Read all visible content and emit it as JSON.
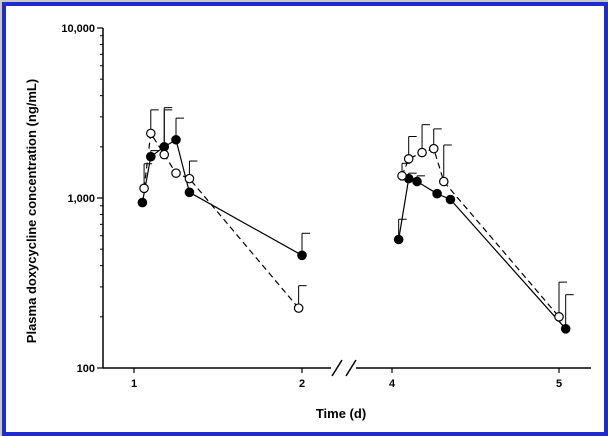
{
  "chart_data": {
    "type": "scatter",
    "title": "",
    "xlabel": "Time (d)",
    "ylabel": "Plasma doxycycline concentration (ng/mL)",
    "y_scale": "log",
    "ylim": [
      100,
      10000
    ],
    "y_ticks": [
      "100",
      "1,000",
      "10,000"
    ],
    "x_ticks": [
      "1",
      "2",
      "4",
      "5"
    ],
    "x_axis_break": "between 2 and 4",
    "grid": false,
    "series": [
      {
        "marker": "filled-circle",
        "line": "solid",
        "segments": [
          [
            {
              "x": 1.05,
              "y": 940,
              "err": 0
            },
            {
              "x": 1.1,
              "y": 1750,
              "err": 150
            },
            {
              "x": 1.18,
              "y": 2000,
              "err": 1300
            },
            {
              "x": 1.25,
              "y": 2200,
              "err": 750
            },
            {
              "x": 1.33,
              "y": 1080,
              "err": 0
            },
            {
              "x": 2.0,
              "y": 460,
              "err": 160
            }
          ],
          [
            {
              "x": 4.04,
              "y": 570,
              "err": 180
            },
            {
              "x": 4.1,
              "y": 1300,
              "err": 100
            },
            {
              "x": 4.15,
              "y": 1250,
              "err": 100
            },
            {
              "x": 4.27,
              "y": 1060,
              "err": 0
            },
            {
              "x": 4.35,
              "y": 980,
              "err": 0
            },
            {
              "x": 5.04,
              "y": 170,
              "err": 100
            }
          ]
        ]
      },
      {
        "marker": "open-circle",
        "line": "dashed",
        "segments": [
          [
            {
              "x": 1.06,
              "y": 1140,
              "err": 450
            },
            {
              "x": 1.1,
              "y": 2400,
              "err": 900
            },
            {
              "x": 1.18,
              "y": 1800,
              "err": 1600
            },
            {
              "x": 1.25,
              "y": 1400,
              "err": 0
            },
            {
              "x": 1.33,
              "y": 1300,
              "err": 350
            },
            {
              "x": 1.98,
              "y": 225,
              "err": 80
            }
          ],
          [
            {
              "x": 4.06,
              "y": 1350,
              "err": 250
            },
            {
              "x": 4.1,
              "y": 1700,
              "err": 600
            },
            {
              "x": 4.18,
              "y": 1850,
              "err": 850
            },
            {
              "x": 4.25,
              "y": 1950,
              "err": 600
            },
            {
              "x": 4.31,
              "y": 1250,
              "err": 800
            },
            {
              "x": 5.0,
              "y": 200,
              "err": 120
            }
          ]
        ]
      }
    ]
  }
}
